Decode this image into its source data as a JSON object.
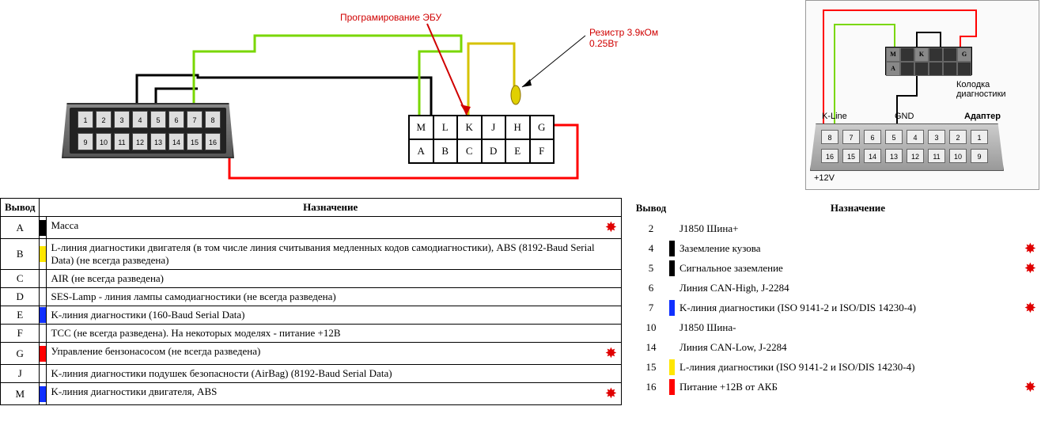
{
  "diagram": {
    "title_programming": "Програмирование ЭБУ",
    "title_resistor": "Резистр 3.9кОм 0.25Вт",
    "obd_pins_top": [
      "1",
      "2",
      "3",
      "4",
      "5",
      "6",
      "7",
      "8"
    ],
    "obd_pins_bot": [
      "9",
      "10",
      "11",
      "12",
      "13",
      "14",
      "15",
      "16"
    ],
    "conn12_top": [
      "M",
      "L",
      "K",
      "J",
      "H",
      "G"
    ],
    "conn12_bot": [
      "A",
      "B",
      "C",
      "D",
      "E",
      "F"
    ],
    "wire_colors": {
      "black": "#000000",
      "green": "#79d700",
      "yellow": "#ffe600",
      "red": "#ff0000",
      "olive": "#d6c200"
    }
  },
  "side_diagram": {
    "label_kolodka": "Колодка диагностики",
    "label_kline": "K-Line",
    "label_gnd": "GND",
    "label_adapter": "Адаптер",
    "label_12v": "+12V",
    "conn_labels": [
      "M",
      "K",
      "G",
      "A"
    ],
    "obd_top": [
      "8",
      "7",
      "6",
      "5",
      "4",
      "3",
      "2",
      "1"
    ],
    "obd_bot": [
      "16",
      "15",
      "14",
      "13",
      "12",
      "11",
      "10",
      "9"
    ]
  },
  "table_left": {
    "headers": [
      "Вывод",
      "Назначение"
    ],
    "rows": [
      {
        "pin": "A",
        "color": "#000000",
        "text": "Масса",
        "star": true
      },
      {
        "pin": "B",
        "color": "#ffe600",
        "text": "L-линия диагностики двигателя (в том числе линия считывания медленных кодов самодиагностики), ABS (8192-Baud Serial Data) (не всегда разведена)",
        "star": false
      },
      {
        "pin": "C",
        "color": "",
        "text": "AIR (не всегда разведена)",
        "star": false
      },
      {
        "pin": "D",
        "color": "",
        "text": "SES-Lamp - линия лампы самодиагностики (не всегда разведена)",
        "star": false
      },
      {
        "pin": "E",
        "color": "#1030ff",
        "text": "K-линия диагностики (160-Baud Serial Data)",
        "star": false
      },
      {
        "pin": "F",
        "color": "",
        "text": "TCC (не всегда разведена). На некоторых моделях - питание +12В",
        "star": false
      },
      {
        "pin": "G",
        "color": "#ff0000",
        "text": "Управление бензонасосом (не всегда разведена)",
        "star": true
      },
      {
        "pin": "J",
        "color": "",
        "text": "K-линия диагностики подушек безопасности (AirBag) (8192-Baud Serial Data)",
        "star": false
      },
      {
        "pin": "M",
        "color": "#1030ff",
        "text": "K-линия диагностики двигателя, ABS",
        "star": true
      }
    ]
  },
  "table_right": {
    "headers": [
      "Вывод",
      "Назначение"
    ],
    "rows": [
      {
        "pin": "2",
        "color": "",
        "text": "J1850 Шина+",
        "star": false
      },
      {
        "pin": "4",
        "color": "#000000",
        "text": "Заземление кузова",
        "star": true
      },
      {
        "pin": "5",
        "color": "#000000",
        "text": "Сигнальное заземление",
        "star": true
      },
      {
        "pin": "6",
        "color": "",
        "text": "Линия CAN-High, J-2284",
        "star": false
      },
      {
        "pin": "7",
        "color": "#1030ff",
        "text": "K-линия диагностики (ISO 9141-2 и ISO/DIS 14230-4)",
        "star": true
      },
      {
        "pin": "10",
        "color": "",
        "text": "J1850 Шина-",
        "star": false
      },
      {
        "pin": "14",
        "color": "",
        "text": "Линия CAN-Low, J-2284",
        "star": false
      },
      {
        "pin": "15",
        "color": "#ffe600",
        "text": "L-линия диагностики (ISO 9141-2 и ISO/DIS 14230-4)",
        "star": false
      },
      {
        "pin": "16",
        "color": "#ff0000",
        "text": "Питание +12B от АКБ",
        "star": true
      }
    ]
  }
}
